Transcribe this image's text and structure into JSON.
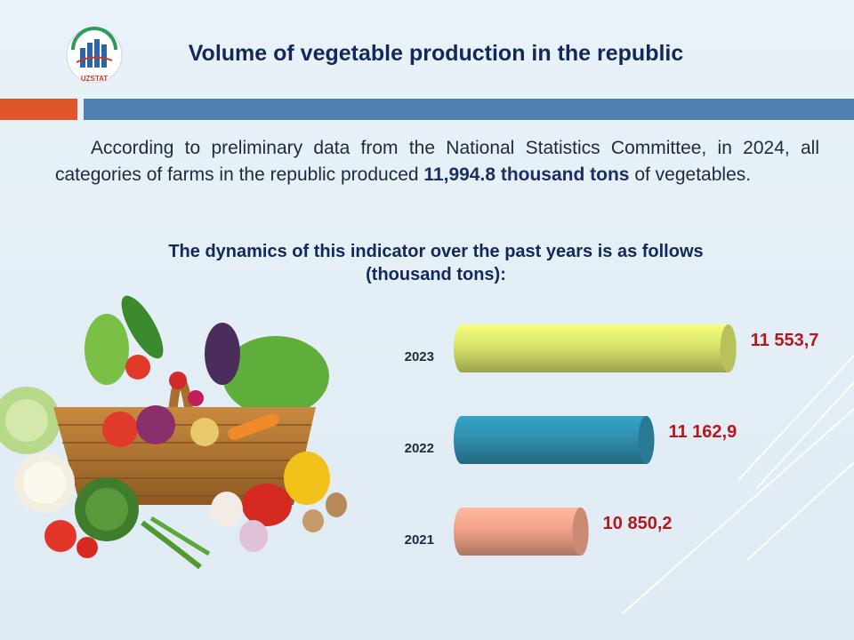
{
  "header": {
    "logo_text": "UZSTAT",
    "title": "Volume of vegetable production in the republic"
  },
  "intro": {
    "text_before": "According to preliminary data from the National Statistics Committee, in 2024, all categories of farms in the republic produced ",
    "text_bold": "11,994.8 thousand tons",
    "text_after": " of vegetables."
  },
  "subtitle": {
    "line1": "The dynamics of this indicator over the past years is as follows",
    "line2": "(thousand tons):"
  },
  "colors": {
    "title": "#13285a",
    "value_label": "#b3181e",
    "band_orange": "#e0562a",
    "band_blue": "#4e80b2"
  },
  "chart_data": {
    "type": "bar",
    "orientation": "horizontal",
    "title": "",
    "xlabel": "",
    "ylabel": "",
    "unit": "thousand tons",
    "categories": [
      "2023",
      "2022",
      "2021"
    ],
    "values": [
      11553.7,
      11162.9,
      10850.2
    ],
    "value_labels": [
      "11 553,7",
      "11 162,9",
      "10 850,2"
    ],
    "bar_colors": [
      "#d8e36a",
      "#2f8fae",
      "#f0a289"
    ],
    "grid": false
  }
}
